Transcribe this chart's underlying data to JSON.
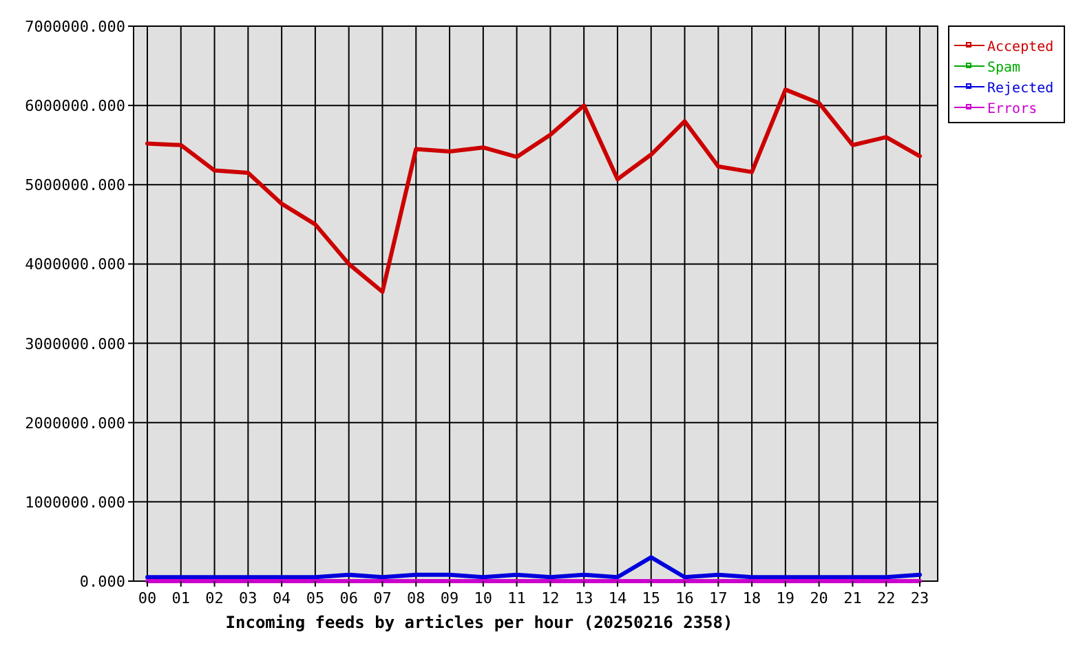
{
  "chart_data": {
    "type": "line",
    "xlabel": "Incoming feeds by articles per hour (20250216 2358)",
    "categories": [
      "00",
      "01",
      "02",
      "03",
      "04",
      "05",
      "06",
      "07",
      "08",
      "09",
      "10",
      "11",
      "12",
      "13",
      "14",
      "15",
      "16",
      "17",
      "18",
      "19",
      "20",
      "21",
      "22",
      "23"
    ],
    "series": [
      {
        "name": "Accepted",
        "color": "#cc0000",
        "values": [
          5520000,
          5500000,
          5180000,
          5150000,
          4760000,
          4500000,
          4000000,
          3650000,
          5450000,
          5420000,
          5470000,
          5350000,
          5630000,
          6000000,
          5070000,
          5380000,
          5800000,
          5230000,
          5160000,
          6200000,
          6030000,
          5500000,
          5600000,
          5360000
        ]
      },
      {
        "name": "Spam",
        "color": "#00aa00",
        "values": [
          null,
          null,
          null,
          null,
          null,
          null,
          null,
          null,
          null,
          null,
          null,
          null,
          null,
          null,
          null,
          null,
          null,
          null,
          null,
          null,
          null,
          null,
          null,
          null
        ]
      },
      {
        "name": "Rejected",
        "color": "#0000dd",
        "values": [
          50000,
          50000,
          50000,
          50000,
          50000,
          50000,
          80000,
          50000,
          80000,
          80000,
          50000,
          80000,
          50000,
          80000,
          50000,
          300000,
          50000,
          80000,
          50000,
          50000,
          50000,
          50000,
          50000,
          80000
        ]
      },
      {
        "name": "Errors",
        "color": "#cc00cc",
        "values": [
          0,
          0,
          0,
          0,
          0,
          0,
          0,
          0,
          0,
          0,
          0,
          0,
          0,
          0,
          0,
          0,
          0,
          0,
          0,
          0,
          0,
          0,
          0,
          0
        ]
      }
    ],
    "ylim": [
      0,
      7000000
    ],
    "yticks": [
      {
        "value": 0,
        "label": "0.000"
      },
      {
        "value": 1000000,
        "label": "1000000.000"
      },
      {
        "value": 2000000,
        "label": "2000000.000"
      },
      {
        "value": 3000000,
        "label": "3000000.000"
      },
      {
        "value": 4000000,
        "label": "4000000.000"
      },
      {
        "value": 5000000,
        "label": "5000000.000"
      },
      {
        "value": 6000000,
        "label": "6000000.000"
      },
      {
        "value": 7000000,
        "label": "7000000.000"
      }
    ],
    "grid": true,
    "legend": "top right",
    "marker": "none",
    "line_style": "solid"
  }
}
